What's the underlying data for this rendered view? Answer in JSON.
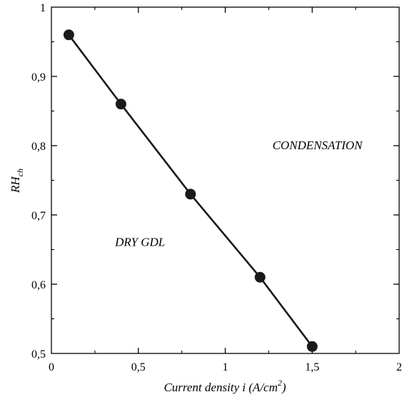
{
  "chart_data": {
    "type": "line",
    "title": "",
    "x": [
      0.1,
      0.4,
      0.8,
      1.2,
      1.5
    ],
    "series": [
      {
        "values": [
          0.96,
          0.86,
          0.73,
          0.61,
          0.51
        ]
      }
    ],
    "xlim": [
      0,
      2
    ],
    "ylim": [
      0.5,
      1
    ],
    "x_ticks": [
      0,
      0.5,
      1,
      1.5,
      2
    ],
    "y_ticks": [
      0.5,
      0.6,
      0.7,
      0.8,
      0.9,
      1
    ],
    "x_tick_labels": [
      "0",
      "0,5",
      "1",
      "1,5",
      "2"
    ],
    "y_tick_labels": [
      "0,5",
      "0,6",
      "0,7",
      "0,8",
      "0,9",
      "1"
    ],
    "xlabel": {
      "main": "Current density i (A/cm",
      "superscript": "2",
      "close": ")"
    },
    "ylabel": {
      "main": "RH",
      "subscript": "ch"
    },
    "annotations": [
      {
        "text": "CONDENSATION",
        "x": 1.53,
        "y": 0.795
      },
      {
        "text": "DRY GDL",
        "x": 0.51,
        "y": 0.655
      }
    ],
    "grid": false,
    "legend": "none",
    "marker": "filled-circle",
    "line_color": "#1a1a1a"
  }
}
